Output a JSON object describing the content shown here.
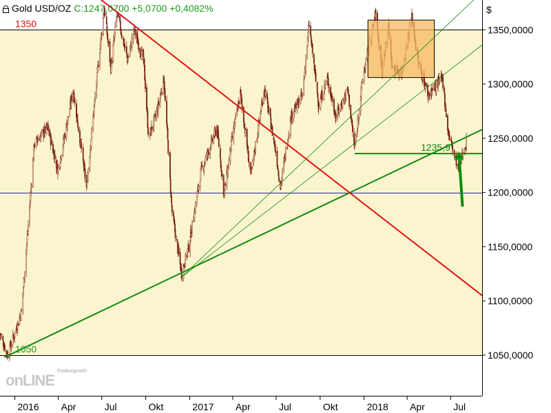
{
  "header": {
    "title": "Gold USD/OZ",
    "quote": "C:1247,0700 +5,0700 +0,4082%"
  },
  "currency_label": "$",
  "watermark": {
    "small": "Tradesignal®",
    "big": "onLINE"
  },
  "colors": {
    "background": "#ffffff",
    "zone_fill": "#fbf5cf",
    "candle": "#7a1f10",
    "down_trend": "#e01010",
    "up_trend": "#0e8a0e",
    "box_fill": "#f5b861",
    "label_red": "#e01010",
    "label_green": "#1a9b1a",
    "axis_text": "#000000"
  },
  "chart_data": {
    "type": "candlestick",
    "title": "Gold USD/OZ",
    "ylabel": "$",
    "ylim": [
      1012.5,
      1377.5
    ],
    "xlim": [
      "2015-12-01",
      "2018-09-05"
    ],
    "x_ticks": [
      {
        "date": "2016-01-01",
        "label": "2016"
      },
      {
        "date": "2016-04-01",
        "label": "Apr"
      },
      {
        "date": "2016-07-01",
        "label": "Jul"
      },
      {
        "date": "2016-10-01",
        "label": "Okt"
      },
      {
        "date": "2017-01-01",
        "label": "2017"
      },
      {
        "date": "2017-04-01",
        "label": "Apr"
      },
      {
        "date": "2017-07-01",
        "label": "Jul"
      },
      {
        "date": "2017-10-01",
        "label": "Okt"
      },
      {
        "date": "2018-01-01",
        "label": "2018"
      },
      {
        "date": "2018-04-01",
        "label": "Apr"
      },
      {
        "date": "2018-07-01",
        "label": "Jul"
      }
    ],
    "y_ticks": [
      {
        "value": 1050,
        "label": "1050,0000"
      },
      {
        "value": 1100,
        "label": "1100,0000"
      },
      {
        "value": 1150,
        "label": "1150,0000"
      },
      {
        "value": 1200,
        "label": "1200,0000"
      },
      {
        "value": 1250,
        "label": "1250,0000"
      },
      {
        "value": 1300,
        "label": "1300,0000"
      },
      {
        "value": 1350,
        "label": "1350,0000"
      }
    ],
    "last_close": 1247.07,
    "change": 5.07,
    "change_pct": 0.4082,
    "price_path": [
      [
        "2015-12-01",
        1070
      ],
      [
        "2015-12-17",
        1050
      ],
      [
        "2016-01-15",
        1090
      ],
      [
        "2016-02-11",
        1245
      ],
      [
        "2016-03-10",
        1260
      ],
      [
        "2016-03-31",
        1220
      ],
      [
        "2016-04-22",
        1270
      ],
      [
        "2016-05-02",
        1295
      ],
      [
        "2016-05-30",
        1205
      ],
      [
        "2016-06-24",
        1320
      ],
      [
        "2016-07-06",
        1370
      ],
      [
        "2016-07-20",
        1315
      ],
      [
        "2016-08-02",
        1365
      ],
      [
        "2016-08-24",
        1322
      ],
      [
        "2016-09-07",
        1350
      ],
      [
        "2016-09-27",
        1320
      ],
      [
        "2016-10-07",
        1250
      ],
      [
        "2016-10-25",
        1275
      ],
      [
        "2016-11-08",
        1305
      ],
      [
        "2016-11-25",
        1182
      ],
      [
        "2016-12-15",
        1125
      ],
      [
        "2016-12-30",
        1150
      ],
      [
        "2017-01-24",
        1218
      ],
      [
        "2017-02-27",
        1260
      ],
      [
        "2017-03-14",
        1198
      ],
      [
        "2017-03-31",
        1250
      ],
      [
        "2017-04-17",
        1292
      ],
      [
        "2017-05-09",
        1215
      ],
      [
        "2017-06-06",
        1297
      ],
      [
        "2017-06-30",
        1238
      ],
      [
        "2017-07-10",
        1205
      ],
      [
        "2017-08-01",
        1270
      ],
      [
        "2017-08-25",
        1290
      ],
      [
        "2017-09-08",
        1355
      ],
      [
        "2017-09-28",
        1280
      ],
      [
        "2017-10-16",
        1305
      ],
      [
        "2017-11-03",
        1270
      ],
      [
        "2017-11-28",
        1295
      ],
      [
        "2017-12-12",
        1240
      ],
      [
        "2017-12-29",
        1305
      ],
      [
        "2018-01-25",
        1365
      ],
      [
        "2018-02-08",
        1312
      ],
      [
        "2018-02-20",
        1355
      ],
      [
        "2018-03-01",
        1315
      ],
      [
        "2018-03-20",
        1310
      ],
      [
        "2018-04-11",
        1362
      ],
      [
        "2018-04-24",
        1320
      ],
      [
        "2018-05-15",
        1290
      ],
      [
        "2018-06-14",
        1305
      ],
      [
        "2018-06-26",
        1255
      ],
      [
        "2018-07-18",
        1220
      ],
      [
        "2018-07-26",
        1235
      ],
      [
        "2018-08-03",
        1247
      ]
    ],
    "zone": {
      "lower": 1050,
      "upper": 1350
    },
    "horizontal_lines": [
      {
        "value": 1350,
        "color": "#000000"
      },
      {
        "value": 1200,
        "color": "#2020a0"
      },
      {
        "value": 1050,
        "color": "#000000"
      }
    ],
    "level_labels": [
      {
        "text": "1350",
        "value": 1350,
        "color": "#e01010"
      },
      {
        "text": "1050",
        "value": 1050,
        "color": "#1a9b1a"
      }
    ],
    "box": {
      "x0": "2018-01-09",
      "x1": "2018-05-28",
      "y0": 1306,
      "y1": 1359
    },
    "down_trendline": {
      "points": [
        [
          "2015-10-24",
          1463
        ],
        [
          "2018-09-05",
          1105
        ]
      ]
    },
    "main_uptrend": {
      "points": [
        [
          "2015-12-10",
          1048
        ],
        [
          "2018-09-05",
          1258
        ]
      ]
    },
    "fan_lines": [
      {
        "points": [
          [
            "2016-12-15",
            1122
          ],
          [
            "2018-09-05",
            1336
          ]
        ]
      },
      {
        "points": [
          [
            "2016-12-15",
            1122
          ],
          [
            "2018-09-05",
            1385
          ]
        ]
      }
    ],
    "support_line": {
      "x0": "2017-12-12",
      "x1": "2018-09-05",
      "value": 1235.9
    },
    "support_label": "1235,9",
    "arrow": {
      "from": [
        "2018-07-26",
        1187
      ],
      "to": [
        "2018-07-18",
        1238
      ]
    }
  }
}
